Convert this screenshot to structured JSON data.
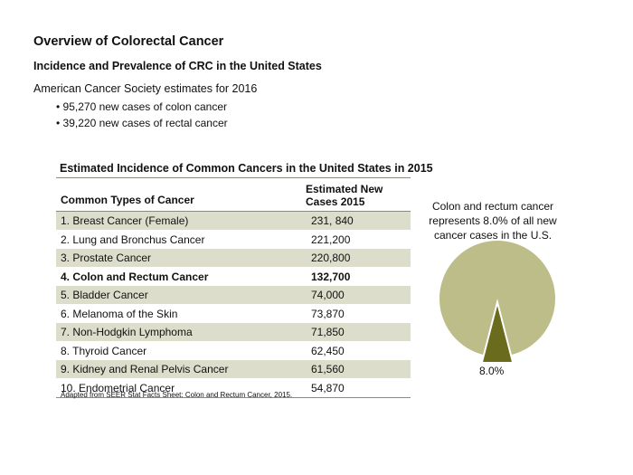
{
  "header": {
    "title": "Overview of Colorectal Cancer",
    "subtitle": "Incidence and Prevalence of CRC in the United States"
  },
  "intro": {
    "text": "American Cancer Society estimates for 2016",
    "bullets": [
      "95,270 new cases of colon cancer",
      "39,220 new cases of rectal cancer"
    ]
  },
  "table": {
    "title": "Estimated Incidence of Common Cancers in the United States in 2015",
    "col1_header": "Common Types of Cancer",
    "col2_header_line1": "Estimated New",
    "col2_header_line2": "Cases 2015",
    "rows": [
      {
        "name": "1. Breast Cancer (Female)",
        "value": "231, 840"
      },
      {
        "name": "2. Lung and Bronchus Cancer",
        "value": "221,200"
      },
      {
        "name": "3. Prostate Cancer",
        "value": "220,800"
      },
      {
        "name": "4. Colon and Rectum Cancer",
        "value": "132,700"
      },
      {
        "name": "5. Bladder Cancer",
        "value": "74,000"
      },
      {
        "name": "6. Melanoma of the Skin",
        "value": "73,870"
      },
      {
        "name": "7. Non-Hodgkin Lymphoma",
        "value": "71,850"
      },
      {
        "name": "8. Thyroid Cancer",
        "value": "62,450"
      },
      {
        "name": "9. Kidney and Renal Pelvis Cancer",
        "value": "61,560"
      },
      {
        "name": "10. Endometrial Cancer",
        "value": "54,870"
      }
    ],
    "source": "Adapted from SEER Stat Facts Sheet: Colon and Rectum Cancer, 2015."
  },
  "pie": {
    "caption_line1": "Colon and rectum cancer",
    "caption_line2": "represents 8.0% of all new",
    "caption_line3": "cancer cases in the U.S.",
    "label": "8.0%",
    "slice_fraction": 0.08,
    "main_color": "#bdbd8a",
    "slice_color": "#6b6b1e"
  }
}
